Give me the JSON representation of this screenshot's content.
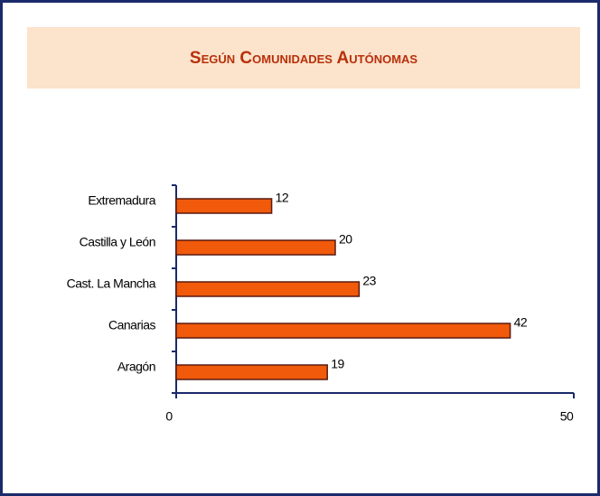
{
  "chart_data": {
    "type": "hbar",
    "title": "Según Comunidades Autónomas",
    "categories": [
      "Extremadura",
      "Castilla y León",
      "Cast. La Mancha",
      "Canarias",
      "Aragón"
    ],
    "values": [
      12,
      20,
      23,
      42,
      19
    ],
    "color": "#f05a0a",
    "xlim": [
      0,
      50
    ],
    "xticks": [
      0,
      50
    ]
  }
}
